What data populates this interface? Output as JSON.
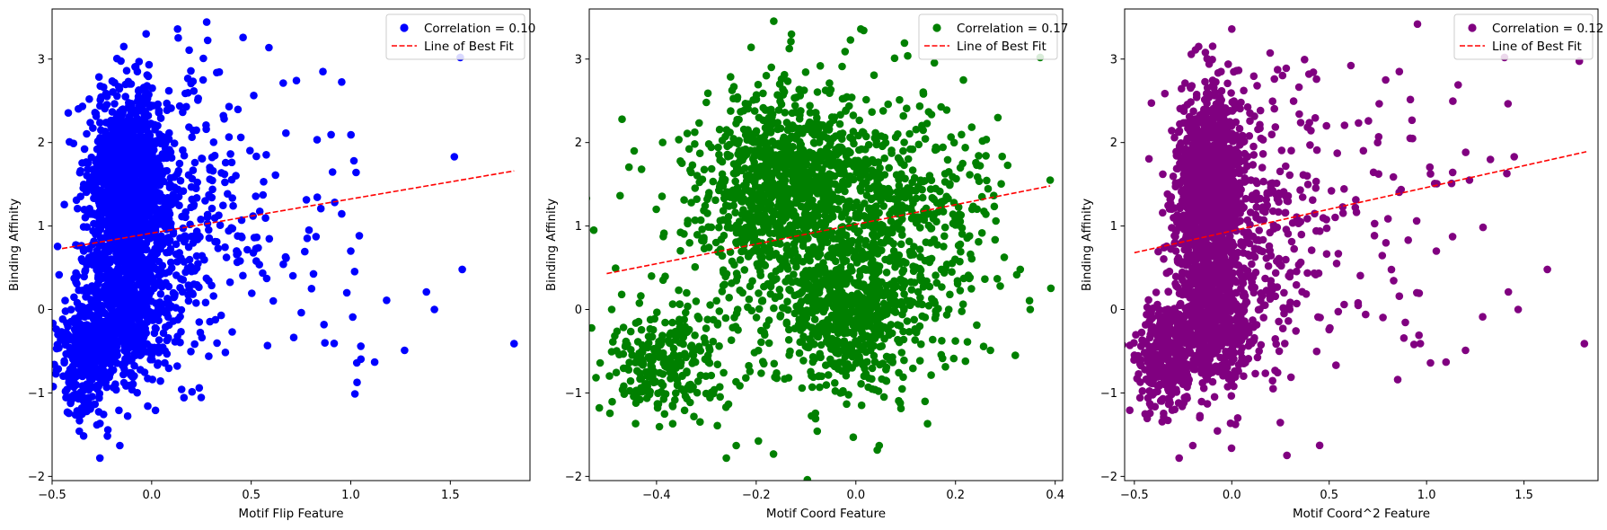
{
  "chart_data": [
    {
      "type": "scatter",
      "xlabel": "Motif Flip Feature",
      "ylabel": "Binding Affinity",
      "xlim": [
        -0.5,
        1.9
      ],
      "ylim": [
        -2.05,
        3.6
      ],
      "xticks": [
        -0.5,
        0.0,
        0.5,
        1.0,
        1.5
      ],
      "xtick_labels": [
        "−0.5",
        "0.0",
        "0.5",
        "1.0",
        "1.5"
      ],
      "yticks": [
        -2,
        -1,
        0,
        1,
        2,
        3
      ],
      "ytick_labels": [
        "−2",
        "−1",
        "0",
        "1",
        "2",
        "3"
      ],
      "legend_placement": "top-right",
      "color": "#0000ff",
      "series": [
        {
          "name": "Correlation = 0.10",
          "kind": "points",
          "clusters": [
            {
              "cx": -0.12,
              "cy": 1.5,
              "sx": 0.1,
              "sy": 0.55,
              "n": 1300
            },
            {
              "cx": -0.15,
              "cy": 0.0,
              "sx": 0.12,
              "sy": 0.45,
              "n": 700
            },
            {
              "cx": -0.33,
              "cy": -0.6,
              "sx": 0.07,
              "sy": 0.35,
              "n": 300
            },
            {
              "cx": 0.15,
              "cy": 1.2,
              "sx": 0.15,
              "sy": 0.9,
              "n": 250
            },
            {
              "cx": 0.6,
              "cy": 1.0,
              "sx": 0.3,
              "sy": 1.0,
              "n": 90
            }
          ],
          "x": [
            0.13,
            -0.14,
            1.55,
            1.52,
            1.82,
            1.56,
            1.38,
            1.42,
            1.27,
            1.18,
            1.12,
            1.03,
            0.98,
            1.0,
            0.86,
            0.87,
            0.79,
            -0.26,
            -0.16
          ],
          "y": [
            3.36,
            3.15,
            3.02,
            1.83,
            -0.41,
            0.48,
            0.21,
            0.0,
            -0.49,
            0.11,
            -0.63,
            -0.64,
            0.2,
            0.7,
            2.85,
            -0.4,
            0.95,
            -1.78,
            -1.63
          ]
        },
        {
          "name": "Line of Best Fit",
          "kind": "line",
          "color": "#ff0000",
          "style": "dashed",
          "x": [
            -0.45,
            1.82
          ],
          "y": [
            0.73,
            1.66
          ]
        }
      ]
    },
    {
      "type": "scatter",
      "xlabel": "Motif Coord Feature",
      "ylabel": "Binding Affinity",
      "xlim": [
        -0.535,
        0.415
      ],
      "ylim": [
        -2.05,
        3.6
      ],
      "xticks": [
        -0.4,
        -0.2,
        0.0,
        0.2,
        0.4
      ],
      "xtick_labels": [
        "−0.4",
        "−0.2",
        "0.0",
        "0.2",
        "0.4"
      ],
      "yticks": [
        -2,
        -1,
        0,
        1,
        2,
        3
      ],
      "ytick_labels": [
        "−2",
        "−1",
        "0",
        "1",
        "2",
        "3"
      ],
      "legend_placement": "top-right",
      "color": "#008000",
      "series": [
        {
          "name": "Correlation = 0.17",
          "kind": "points",
          "clusters": [
            {
              "cx": -0.13,
              "cy": 1.45,
              "sx": 0.09,
              "sy": 0.55,
              "n": 1000
            },
            {
              "cx": -0.02,
              "cy": 0.0,
              "sx": 0.08,
              "sy": 0.5,
              "n": 650
            },
            {
              "cx": -0.38,
              "cy": -0.65,
              "sx": 0.06,
              "sy": 0.35,
              "n": 260
            },
            {
              "cx": 0.12,
              "cy": 1.1,
              "sx": 0.08,
              "sy": 0.7,
              "n": 300
            },
            {
              "cx": -0.08,
              "cy": 0.8,
              "sx": 0.18,
              "sy": 1.0,
              "n": 300
            }
          ],
          "x": [
            0.01,
            0.37,
            0.39,
            -0.26,
            -0.24,
            0.33,
            0.35,
            0.32,
            -0.43,
            -0.49,
            -0.47,
            0.27,
            0.22,
            -0.41
          ],
          "y": [
            3.36,
            3.02,
            1.55,
            -1.78,
            -1.63,
            0.48,
            0.0,
            -0.55,
            1.68,
            0.0,
            0.18,
            -0.49,
            -0.62,
            0.4
          ]
        },
        {
          "name": "Line of Best Fit",
          "kind": "line",
          "color": "#ff0000",
          "style": "dashed",
          "x": [
            -0.5,
            0.39
          ],
          "y": [
            0.43,
            1.48
          ]
        }
      ]
    },
    {
      "type": "scatter",
      "xlabel": "Motif Coord^2 Feature",
      "ylabel": "Binding Affinity",
      "xlim": [
        -0.55,
        1.88
      ],
      "ylim": [
        -2.05,
        3.6
      ],
      "xticks": [
        -0.5,
        0.0,
        0.5,
        1.0,
        1.5
      ],
      "xtick_labels": [
        "−0.5",
        "0.0",
        "0.5",
        "1.0",
        "1.5"
      ],
      "yticks": [
        -2,
        -1,
        0,
        1,
        2,
        3
      ],
      "ytick_labels": [
        "−2",
        "−1",
        "0",
        "1",
        "2",
        "3"
      ],
      "legend_placement": "top-right",
      "color": "#800080",
      "series": [
        {
          "name": "Correlation = 0.12",
          "kind": "points",
          "clusters": [
            {
              "cx": -0.12,
              "cy": 1.5,
              "sx": 0.09,
              "sy": 0.55,
              "n": 1200
            },
            {
              "cx": -0.1,
              "cy": 0.0,
              "sx": 0.1,
              "sy": 0.5,
              "n": 700
            },
            {
              "cx": -0.35,
              "cy": -0.6,
              "sx": 0.07,
              "sy": 0.35,
              "n": 300
            },
            {
              "cx": 0.2,
              "cy": 1.0,
              "sx": 0.15,
              "sy": 0.9,
              "n": 230
            },
            {
              "cx": 0.7,
              "cy": 1.2,
              "sx": 0.35,
              "sy": 1.0,
              "n": 90
            }
          ],
          "x": [
            0.0,
            -0.17,
            1.4,
            1.45,
            1.81,
            1.62,
            1.42,
            1.47,
            1.2,
            1.22,
            1.1,
            1.02,
            0.95,
            1.05,
            0.86,
            0.79,
            -0.27,
            -0.2
          ],
          "y": [
            3.36,
            3.15,
            3.02,
            1.83,
            -0.41,
            0.48,
            0.21,
            0.0,
            -0.49,
            1.55,
            -0.63,
            -0.64,
            0.2,
            0.7,
            2.85,
            2.75,
            -1.78,
            -1.63
          ]
        },
        {
          "name": "Line of Best Fit",
          "kind": "line",
          "color": "#ff0000",
          "style": "dashed",
          "x": [
            -0.5,
            1.82
          ],
          "y": [
            0.68,
            1.89
          ]
        }
      ]
    }
  ]
}
